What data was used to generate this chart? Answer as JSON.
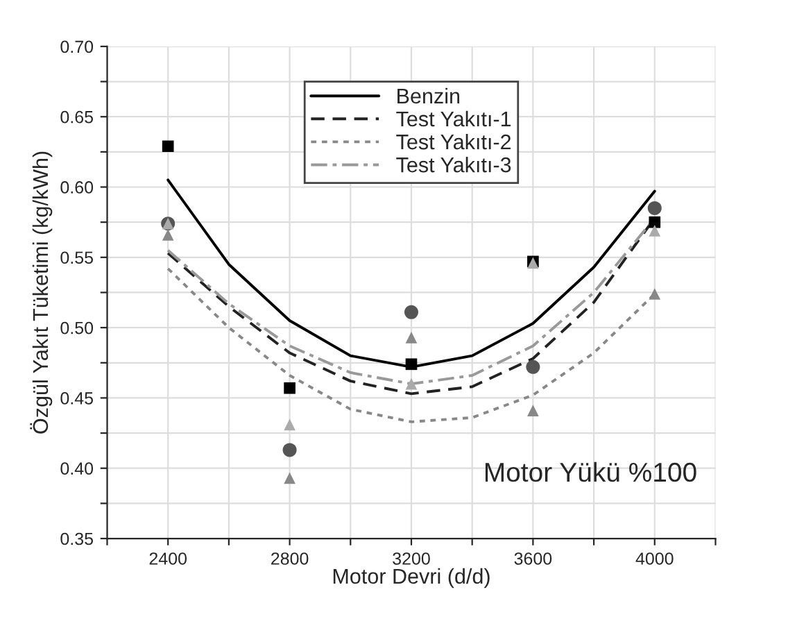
{
  "chart_data": {
    "type": "scatter",
    "xlabel": "Motor Devri (d/d)",
    "ylabel": "Özgül Yakıt Tüketimi (kg/kWh)",
    "annotations": [
      "Motor Yükü %100"
    ],
    "xlim": [
      2200,
      4200
    ],
    "ylim": [
      0.35,
      0.7
    ],
    "xticks": [
      {
        "value": 2200,
        "label": null
      },
      2400,
      {
        "value": 2600,
        "label": null
      },
      2800,
      {
        "value": 3000,
        "label": null
      },
      3200,
      {
        "value": 3400,
        "label": null
      },
      3600,
      {
        "value": 3800,
        "label": null
      },
      4000,
      {
        "value": 4200,
        "label": null
      }
    ],
    "yticks": [
      {
        "value": 0.35,
        "label": "0.35"
      },
      {
        "value": 0.375,
        "label": null
      },
      {
        "value": 0.4,
        "label": "0.40"
      },
      {
        "value": 0.425,
        "label": null
      },
      {
        "value": 0.45,
        "label": "0.45"
      },
      {
        "value": 0.475,
        "label": null
      },
      {
        "value": 0.5,
        "label": "0.50"
      },
      {
        "value": 0.525,
        "label": null
      },
      {
        "value": 0.55,
        "label": "0.55"
      },
      {
        "value": 0.575,
        "label": null
      },
      {
        "value": 0.6,
        "label": "0.60"
      },
      {
        "value": 0.625,
        "label": null
      },
      {
        "value": 0.65,
        "label": "0.65"
      },
      {
        "value": 0.675,
        "label": null
      },
      {
        "value": 0.7,
        "label": "0.70"
      }
    ],
    "grid": true,
    "legend": "top",
    "series": [
      {
        "type": "line",
        "name": "Benzin",
        "color": "#000000",
        "line_style": "solid",
        "marker": "none",
        "x": [
          2400,
          2600,
          2800,
          3000,
          3200,
          3400,
          3600,
          3800,
          4000
        ],
        "values": [
          0.605,
          0.545,
          0.505,
          0.48,
          0.472,
          0.48,
          0.503,
          0.543,
          0.597
        ]
      },
      {
        "type": "line",
        "name": "Test Yakıtı-1",
        "color": "#222222",
        "line_style": "dashed",
        "marker": "none",
        "x": [
          2400,
          2600,
          2800,
          3000,
          3200,
          3400,
          3600,
          3800,
          4000
        ],
        "values": [
          0.553,
          0.515,
          0.482,
          0.462,
          0.453,
          0.458,
          0.478,
          0.518,
          0.578
        ]
      },
      {
        "type": "line",
        "name": "Test Yakıtı-2",
        "color": "#888888",
        "line_style": "dotted",
        "marker": "none",
        "x": [
          2400,
          2600,
          2800,
          3000,
          3200,
          3400,
          3600,
          3800,
          4000
        ],
        "values": [
          0.542,
          0.5,
          0.466,
          0.442,
          0.433,
          0.436,
          0.452,
          0.482,
          0.524
        ]
      },
      {
        "type": "line",
        "name": "Test Yakıtı-3",
        "color": "#999999",
        "line_style": "dashdot",
        "marker": "none",
        "x": [
          2400,
          2600,
          2800,
          3000,
          3200,
          3400,
          3600,
          3800,
          4000
        ],
        "values": [
          0.555,
          0.517,
          0.487,
          0.468,
          0.46,
          0.466,
          0.487,
          0.525,
          0.578
        ]
      },
      {
        "color": "#000000",
        "marker": "square",
        "x": [
          2400,
          2800,
          3200,
          3600,
          4000
        ],
        "values": [
          0.629,
          0.457,
          0.474,
          0.547,
          0.575
        ]
      },
      {
        "color": "#555555",
        "marker": "circle",
        "x": [
          2400,
          2800,
          3200,
          3600,
          4000
        ],
        "values": [
          0.574,
          0.413,
          0.511,
          0.472,
          0.585
        ]
      },
      {
        "color": "#aaaaaa",
        "marker": "triangle",
        "x": [
          2400,
          2800,
          3200,
          3600,
          4000
        ],
        "values": [
          0.574,
          0.431,
          0.46,
          0.546,
          0.569
        ]
      },
      {
        "color": "#888888",
        "marker": "triangle",
        "x": [
          2400,
          2800,
          3200,
          3600,
          4000
        ],
        "values": [
          0.566,
          0.393,
          0.493,
          0.441,
          0.524
        ]
      }
    ]
  }
}
